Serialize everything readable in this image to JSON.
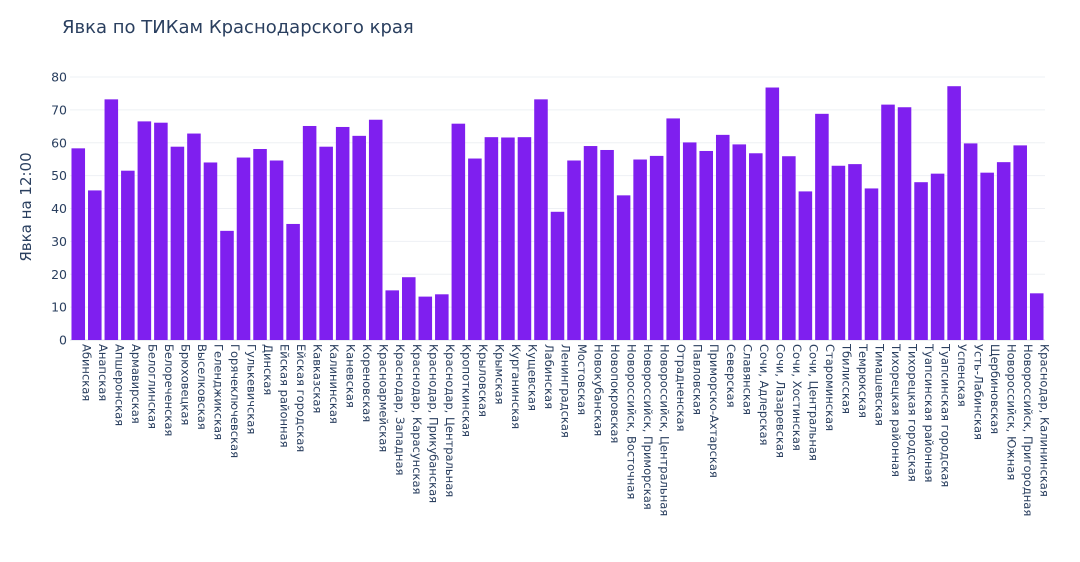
{
  "chart_data": {
    "type": "bar",
    "title": "Явка по ТИКам Краснодарского края",
    "xlabel": "",
    "ylabel": "Явка на 12:00",
    "ylim": [
      0,
      80
    ],
    "yticks": [
      0,
      10,
      20,
      30,
      40,
      50,
      60,
      70,
      80
    ],
    "grid": true,
    "bar_color": "#7f1fef",
    "categories": [
      "Абинская",
      "Анапская",
      "Апшеронская",
      "Армавирская",
      "Белоглинская",
      "Белореченская",
      "Брюховецкая",
      "Выселковская",
      "Геленджикская",
      "Горячеключевская",
      "Гулькевичская",
      "Динская",
      "Ейская районная",
      "Ейская городская",
      "Кавказская",
      "Калининская",
      "Каневская",
      "Кореновская",
      "Красноармейская",
      "Краснодар, Западная",
      "Краснодар, Карасунская",
      "Краснодар, Прикубанская",
      "Краснодар, Центральная",
      "Кропоткинская",
      "Крыловская",
      "Крымская",
      "Курганинская",
      "Кущевская",
      "Лабинская",
      "Ленинградская",
      "Мостовская",
      "Новокубанская",
      "Новопокровская",
      "Новороссийск, Восточная",
      "Новороссийск, Приморская",
      "Новороссийск, Центральная",
      "Отрадненская",
      "Павловская",
      "Приморско-Ахтарская",
      "Северская",
      "Славянская",
      "Сочи, Адлерская",
      "Сочи, Лазаревская",
      "Сочи, Хостинская",
      "Сочи, Центральная",
      "Староминская",
      "Тбилисская",
      "Темрюкская",
      "Тимашевская",
      "Тихорецкая районная",
      "Тихорецкая городская",
      "Туапсинская районная",
      "Туапсинская городская",
      "Успенская",
      "Усть-Лабинская",
      "Щербиновская",
      "Новороссийск, Южная",
      "Новороссийск, Пригородная",
      "Краснодар, Калининская"
    ],
    "values": [
      58.3,
      45.5,
      73.2,
      51.5,
      66.5,
      66.1,
      58.8,
      62.8,
      54.0,
      33.2,
      55.5,
      58.1,
      54.6,
      35.3,
      65.1,
      58.8,
      64.8,
      62.1,
      67.0,
      15.1,
      19.1,
      13.2,
      13.9,
      65.8,
      55.2,
      61.7,
      61.6,
      61.7,
      73.2,
      39.0,
      54.6,
      59.0,
      57.8,
      44.0,
      54.9,
      56.0,
      67.4,
      60.1,
      57.5,
      62.4,
      59.5,
      56.8,
      76.8,
      55.9,
      45.2,
      68.8,
      53.0,
      53.5,
      46.1,
      71.6,
      70.8,
      48.0,
      50.6,
      77.2,
      59.8,
      50.9,
      54.1,
      59.2,
      14.2
    ]
  }
}
